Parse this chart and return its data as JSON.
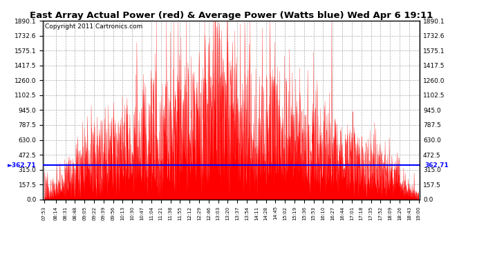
{
  "title": "East Array Actual Power (red) & Average Power (Watts blue) Wed Apr 6 19:11",
  "copyright": "Copyright 2011 Cartronics.com",
  "avg_power": 362.71,
  "y_max": 1890.1,
  "y_ticks": [
    0.0,
    157.5,
    315.0,
    472.5,
    630.0,
    787.5,
    945.0,
    1102.5,
    1260.0,
    1417.5,
    1575.1,
    1732.6,
    1890.1
  ],
  "x_tick_labels": [
    "07:53",
    "08:14",
    "08:31",
    "08:48",
    "09:05",
    "09:22",
    "09:39",
    "09:56",
    "10:13",
    "10:30",
    "10:47",
    "11:04",
    "11:21",
    "11:38",
    "11:55",
    "12:12",
    "12:29",
    "12:46",
    "13:03",
    "13:20",
    "13:37",
    "13:54",
    "14:11",
    "14:28",
    "14:45",
    "15:02",
    "15:19",
    "15:36",
    "15:53",
    "16:10",
    "16:27",
    "16:44",
    "17:01",
    "17:18",
    "17:35",
    "17:52",
    "18:09",
    "18:26",
    "18:43",
    "19:00"
  ],
  "background_color": "#ffffff",
  "plot_bg_color": "#ffffff",
  "grid_color": "#aaaaaa",
  "area_color": "#ff0000",
  "avg_line_color": "#0000ff",
  "title_fontsize": 9.5,
  "copyright_fontsize": 6.5
}
